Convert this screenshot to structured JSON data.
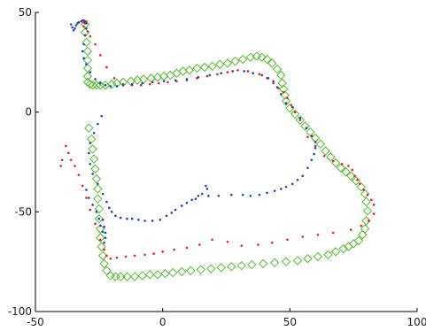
{
  "chart_data": {
    "type": "scatter",
    "title": "",
    "xlabel": "",
    "ylabel": "",
    "xlim": [
      -50,
      100
    ],
    "ylim": [
      -100,
      50
    ],
    "xticks": [
      -50,
      0,
      50,
      100
    ],
    "yticks": [
      -100,
      -50,
      0,
      50
    ],
    "grid": false,
    "legend": "none",
    "series": [
      {
        "marker": "diamond",
        "color": "#55bb33",
        "x": [
          -30.5,
          -30.5,
          -30.0,
          -29.5,
          -29.5,
          -29.5,
          -29.5,
          -29.5,
          -28.5,
          -27.5,
          -26.0,
          -24.5,
          -22.5,
          -20.0,
          -18.0,
          -15.5,
          -12.5,
          -10.0,
          -7.5,
          -4.5,
          -2.0,
          0.5,
          3.0,
          5.5,
          8.0,
          10.5,
          13.5,
          16.5,
          19.5,
          22.5,
          25.5,
          28.5,
          31.5,
          34.5,
          37.0,
          39.0,
          41.0,
          43.0,
          45.0,
          46.5,
          47.0,
          47.5,
          48.0,
          48.5,
          50.0,
          52.0,
          54.0,
          56.0,
          58.0,
          60.0,
          62.0,
          64.0,
          66.0,
          68.0,
          70.0,
          72.0,
          74.0,
          76.0,
          78.0,
          79.5,
          80.0,
          80.5,
          80.0,
          79.5,
          78.5,
          77.0,
          75.0,
          73.0,
          71.0,
          68.0,
          65.0,
          61.0,
          57.0,
          53.0,
          48.5,
          44.0,
          39.5,
          35.0,
          31.0,
          27.0,
          23.0,
          19.0,
          15.0,
          11.0,
          7.5,
          4.0,
          1.0,
          -2.0,
          -5.0,
          -8.0,
          -11.0,
          -14.0,
          -16.5,
          -18.5,
          -20.5,
          -22.0,
          -23.0,
          -23.5,
          -24.0,
          -24.5,
          -24.5,
          -25.0,
          -25.0,
          -25.5,
          -25.5,
          -26.0,
          -26.5,
          -27.0,
          -27.5,
          -28.0,
          -29.0
        ],
        "y": [
          44.0,
          40.0,
          35.0,
          30.5,
          26.0,
          22.0,
          18.0,
          15.0,
          14.0,
          13.5,
          13.5,
          13.5,
          13.5,
          14.0,
          14.5,
          15.0,
          15.5,
          16.0,
          16.5,
          17.0,
          17.5,
          18.0,
          18.5,
          19.5,
          20.5,
          21.0,
          22.0,
          22.5,
          23.0,
          24.0,
          24.5,
          25.5,
          26.5,
          27.5,
          28.0,
          27.5,
          26.5,
          24.5,
          21.5,
          18.5,
          14.5,
          11.5,
          8.5,
          5.5,
          2.0,
          -1.0,
          -4.0,
          -7.0,
          -10.0,
          -13.0,
          -16.0,
          -19.5,
          -22.5,
          -25.5,
          -28.0,
          -30.0,
          -32.0,
          -34.5,
          -37.5,
          -41.0,
          -45.0,
          -49.5,
          -54.5,
          -58.5,
          -61.5,
          -64.5,
          -66.0,
          -67.5,
          -68.5,
          -70.0,
          -71.5,
          -72.5,
          -73.5,
          -74.5,
          -75.0,
          -75.5,
          -76.0,
          -76.5,
          -77.0,
          -77.5,
          -78.0,
          -78.5,
          -79.0,
          -79.5,
          -80.0,
          -80.5,
          -81.0,
          -81.5,
          -81.5,
          -82.0,
          -82.5,
          -82.5,
          -82.5,
          -82.5,
          -82.0,
          -79.5,
          -76.0,
          -72.0,
          -67.5,
          -63.0,
          -58.5,
          -53.5,
          -48.5,
          -43.5,
          -38.5,
          -33.5,
          -28.5,
          -23.5,
          -18.5,
          -13.5,
          -8.0
        ]
      },
      {
        "marker": "dot",
        "color": "#dd2222",
        "x": [
          -33.0,
          -32.0,
          -31.5,
          -31.0,
          -30.5,
          -30.0,
          -31.0,
          -29.5,
          -28.5,
          -26.5,
          -24.5,
          -22.0,
          -19.0,
          -15.5,
          -12.0,
          -8.5,
          -5.0,
          -1.5,
          2.0,
          5.5,
          9.5,
          13.5,
          17.5,
          21.5,
          25.5,
          29.5,
          33.5,
          38.0,
          41.0,
          43.5,
          45.5,
          47.5,
          49.0,
          50.5,
          52.0,
          54.0,
          57.0,
          60.0,
          63.5,
          67.0,
          70.5,
          73.0,
          74.5,
          75.5,
          76.5,
          77.5,
          79.0,
          80.5,
          82.0,
          83.0,
          83.0,
          81.0,
          78.0,
          74.0,
          67.0,
          61.0,
          55.0,
          49.0,
          43.0,
          37.5,
          31.0,
          25.5,
          19.5,
          14.5,
          9.5,
          4.5,
          0.0,
          -3.5,
          -7.0,
          -11.0,
          -14.5,
          -18.0,
          -20.5,
          -22.0,
          -23.0,
          -24.5,
          -26.5,
          -28.5,
          -30.0,
          -31.5,
          -33.0,
          -34.5,
          -36.0,
          -37.0,
          -38.0,
          -39.5,
          -40.0
        ],
        "y": [
          45.0,
          45.5,
          46.0,
          45.0,
          44.5,
          45.5,
          43.0,
          40.5,
          38.0,
          34.0,
          28.5,
          22.5,
          17.0,
          14.0,
          13.5,
          13.5,
          14.0,
          14.5,
          15.0,
          15.5,
          16.0,
          17.0,
          18.0,
          19.0,
          20.0,
          21.0,
          20.5,
          19.0,
          17.0,
          14.5,
          12.0,
          10.0,
          7.0,
          3.5,
          0.0,
          -4.0,
          -12.5,
          -17.0,
          -22.0,
          -24.5,
          -26.0,
          -27.0,
          -29.0,
          -32.0,
          -34.0,
          -36.0,
          -39.0,
          -41.5,
          -44.0,
          -46.5,
          -51.0,
          -54.5,
          -57.0,
          -59.0,
          -60.5,
          -61.5,
          -62.5,
          -64.0,
          -65.5,
          -66.5,
          -67.0,
          -65.0,
          -64.0,
          -66.5,
          -68.0,
          -69.0,
          -70.0,
          -71.0,
          -71.5,
          -72.0,
          -72.5,
          -73.0,
          -73.5,
          -72.0,
          -69.0,
          -64.0,
          -56.0,
          -49.0,
          -43.0,
          -37.0,
          -31.5,
          -27.0,
          -24.0,
          -20.5,
          -17.0,
          -24.0,
          -27.0
        ]
      },
      {
        "marker": "dot",
        "color": "#2244aa",
        "x": [
          -36.0,
          -35.5,
          -35.0,
          -34.5,
          -34.0,
          -33.5,
          -33.0,
          -32.0,
          -31.0,
          -30.5,
          -30.0,
          -30.0,
          -30.5,
          -31.0,
          -31.5,
          -31.0,
          -30.0,
          -28.5,
          -26.5,
          -24.5,
          -22.5,
          -20.5,
          -18.0,
          -15.5,
          -12.0,
          -8.0,
          -4.0,
          0.5,
          5.0,
          9.5,
          14.0,
          18.5,
          23.0,
          27.5,
          32.0,
          35.5,
          39.0,
          41.5,
          43.5,
          45.0,
          46.5,
          48.5,
          51.0,
          54.0,
          56.5,
          58.5,
          60.0,
          60.0,
          59.5,
          58.5,
          57.0,
          55.0,
          53.0,
          51.0,
          48.5,
          46.5,
          44.0,
          41.0,
          38.0,
          34.5,
          31.5,
          27.0,
          22.0,
          18.0,
          17.5,
          17.0,
          15.5,
          14.0,
          13.0,
          11.5,
          9.5,
          7.5,
          5.0,
          3.5,
          1.5,
          -1.0,
          -4.0,
          -7.0,
          -9.5,
          -12.0,
          -14.0,
          -16.5,
          -18.5,
          -20.0,
          -21.0,
          -22.0,
          -23.5,
          -25.5,
          -27.5,
          -28.5,
          -29.0,
          -28.5,
          -27.0,
          -25.5,
          -24.0,
          -23.5,
          -23.0,
          -22.5,
          -22.5,
          -23.0,
          -23.5,
          -24.5,
          -25.0,
          -26.0,
          -27.5,
          -29.0,
          -30.0
        ],
        "y": [
          44.0,
          42.5,
          41.0,
          42.0,
          43.5,
          44.5,
          45.0,
          45.5,
          46.0,
          45.0,
          44.5,
          42.0,
          38.5,
          34.0,
          30.5,
          27.0,
          24.0,
          20.0,
          16.5,
          14.5,
          13.5,
          13.0,
          13.0,
          13.5,
          14.0,
          14.5,
          15.0,
          15.5,
          16.0,
          16.5,
          17.5,
          18.5,
          19.5,
          20.5,
          20.5,
          19.5,
          18.5,
          17.0,
          15.5,
          12.5,
          9.0,
          4.5,
          2.5,
          -3.0,
          -8.0,
          -12.0,
          -15.0,
          -18.0,
          -21.0,
          -24.0,
          -28.0,
          -32.0,
          -34.0,
          -36.0,
          -37.5,
          -38.5,
          -39.5,
          -40.5,
          -41.5,
          -42.0,
          -41.5,
          -41.5,
          -42.0,
          -42.0,
          -38.5,
          -37.0,
          -41.0,
          -42.0,
          -43.5,
          -44.0,
          -45.5,
          -47.0,
          -49.0,
          -50.5,
          -52.0,
          -54.0,
          -54.5,
          -54.5,
          -54.0,
          -53.5,
          -53.5,
          -53.0,
          -52.0,
          -50.0,
          -48.0,
          -45.0,
          -41.0,
          -36.0,
          -31.0,
          -26.0,
          -20.5,
          -15.5,
          -10.5,
          -6.0,
          -2.0,
          -54.0,
          -57.5,
          -60.5,
          -63.0,
          -65.5,
          -60.0,
          -57.0,
          -53.5,
          -50.0,
          -46.5,
          -43.0,
          -39.0
        ]
      }
    ]
  }
}
